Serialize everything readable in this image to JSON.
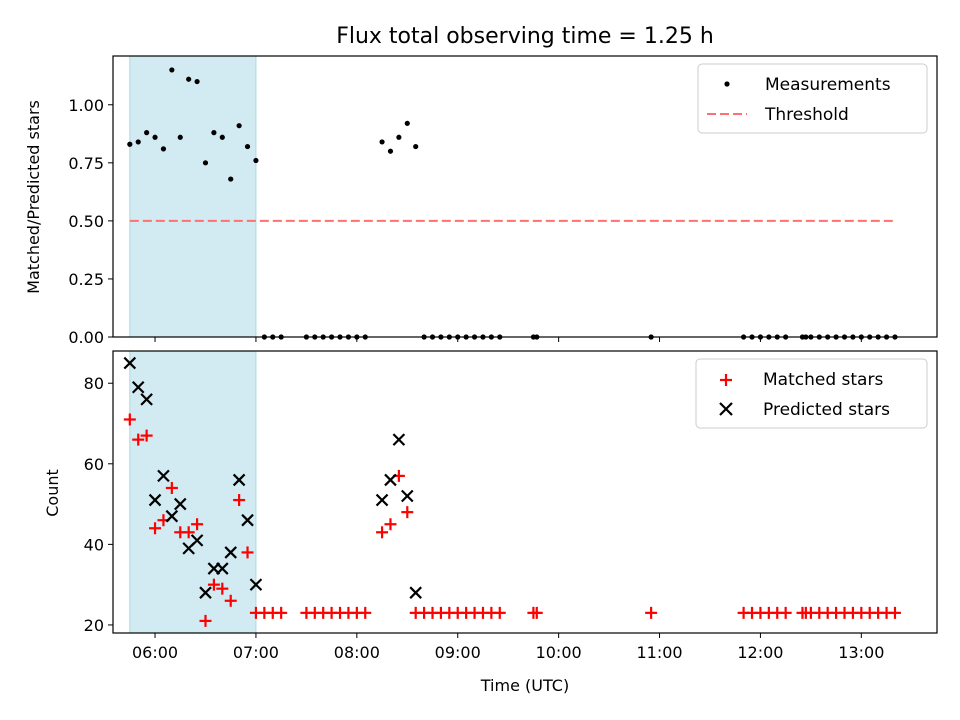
{
  "title": "Flux total observing time = 1.25 h",
  "chart_data": [
    {
      "type": "scatter",
      "panel": "top",
      "title": "Flux total observing time = 1.25 h",
      "xlabel": "",
      "ylabel": "Matched/Predicted stars",
      "xlim": [
        "05:35",
        "13:45"
      ],
      "ylim": [
        0,
        1.21
      ],
      "yticks": [
        "0.00",
        "0.25",
        "0.50",
        "0.75",
        "1.00"
      ],
      "ytick_values": [
        0,
        0.25,
        0.5,
        0.75,
        1.0
      ],
      "shaded_span": [
        "05:45",
        "07:00"
      ],
      "grid": false,
      "legend_position": "upper right",
      "series": [
        {
          "name": "Measurements",
          "marker": "dot",
          "color": "#000000",
          "points": [
            [
              "05:45",
              0.83
            ],
            [
              "05:50",
              0.84
            ],
            [
              "05:55",
              0.88
            ],
            [
              "06:00",
              0.86
            ],
            [
              "06:05",
              0.81
            ],
            [
              "06:10",
              1.15
            ],
            [
              "06:15",
              0.86
            ],
            [
              "06:20",
              1.11
            ],
            [
              "06:25",
              1.1
            ],
            [
              "06:30",
              0.75
            ],
            [
              "06:35",
              0.88
            ],
            [
              "06:40",
              0.86
            ],
            [
              "06:45",
              0.68
            ],
            [
              "06:50",
              0.91
            ],
            [
              "06:55",
              0.82
            ],
            [
              "07:00",
              0.76
            ],
            [
              "08:15",
              0.84
            ],
            [
              "08:20",
              0.8
            ],
            [
              "08:25",
              0.86
            ],
            [
              "08:30",
              0.92
            ],
            [
              "08:35",
              0.82
            ],
            [
              "07:05",
              0
            ],
            [
              "07:10",
              0
            ],
            [
              "07:15",
              0
            ],
            [
              "07:30",
              0
            ],
            [
              "07:35",
              0
            ],
            [
              "07:40",
              0
            ],
            [
              "07:45",
              0
            ],
            [
              "07:50",
              0
            ],
            [
              "07:55",
              0
            ],
            [
              "08:00",
              0
            ],
            [
              "08:05",
              0
            ],
            [
              "08:40",
              0
            ],
            [
              "08:45",
              0
            ],
            [
              "08:50",
              0
            ],
            [
              "08:55",
              0
            ],
            [
              "09:00",
              0
            ],
            [
              "09:05",
              0
            ],
            [
              "09:10",
              0
            ],
            [
              "09:15",
              0
            ],
            [
              "09:20",
              0
            ],
            [
              "09:25",
              0
            ],
            [
              "09:45",
              0
            ],
            [
              "09:47",
              0
            ],
            [
              "10:55",
              0
            ],
            [
              "11:50",
              0
            ],
            [
              "11:55",
              0
            ],
            [
              "12:00",
              0
            ],
            [
              "12:05",
              0
            ],
            [
              "12:10",
              0
            ],
            [
              "12:15",
              0
            ],
            [
              "12:25",
              0
            ],
            [
              "12:27",
              0
            ],
            [
              "12:30",
              0
            ],
            [
              "12:35",
              0
            ],
            [
              "12:40",
              0
            ],
            [
              "12:45",
              0
            ],
            [
              "12:50",
              0
            ],
            [
              "12:55",
              0
            ],
            [
              "13:00",
              0
            ],
            [
              "13:05",
              0
            ],
            [
              "13:10",
              0
            ],
            [
              "13:15",
              0
            ],
            [
              "13:20",
              0
            ]
          ]
        },
        {
          "name": "Threshold",
          "style": "dashed",
          "color": "#ff7070",
          "points": [
            [
              "05:45",
              0.5
            ],
            [
              "13:20",
              0.5
            ]
          ]
        }
      ]
    },
    {
      "type": "scatter",
      "panel": "bottom",
      "xlabel": "Time (UTC)",
      "ylabel": "Count",
      "xlim": [
        "05:35",
        "13:45"
      ],
      "ylim": [
        18,
        88
      ],
      "xticks": [
        "06:00",
        "07:00",
        "08:00",
        "09:00",
        "10:00",
        "11:00",
        "12:00",
        "13:00"
      ],
      "yticks": [
        "20",
        "40",
        "60",
        "80"
      ],
      "ytick_values": [
        20,
        40,
        60,
        80
      ],
      "shaded_span": [
        "05:45",
        "07:00"
      ],
      "grid": false,
      "legend_position": "upper right",
      "series": [
        {
          "name": "Matched stars",
          "marker": "plus",
          "color": "#ff0000",
          "points": [
            [
              "05:45",
              71
            ],
            [
              "05:50",
              66
            ],
            [
              "05:55",
              67
            ],
            [
              "06:00",
              44
            ],
            [
              "06:05",
              46
            ],
            [
              "06:10",
              54
            ],
            [
              "06:15",
              43
            ],
            [
              "06:20",
              43
            ],
            [
              "06:25",
              45
            ],
            [
              "06:30",
              21
            ],
            [
              "06:35",
              30
            ],
            [
              "06:40",
              29
            ],
            [
              "06:45",
              26
            ],
            [
              "06:50",
              51
            ],
            [
              "06:55",
              38
            ],
            [
              "07:00",
              23
            ],
            [
              "08:15",
              43
            ],
            [
              "08:20",
              45
            ],
            [
              "08:25",
              57
            ],
            [
              "08:30",
              48
            ],
            [
              "07:05",
              23
            ],
            [
              "07:10",
              23
            ],
            [
              "07:15",
              23
            ],
            [
              "07:30",
              23
            ],
            [
              "07:35",
              23
            ],
            [
              "07:40",
              23
            ],
            [
              "07:45",
              23
            ],
            [
              "07:50",
              23
            ],
            [
              "07:55",
              23
            ],
            [
              "08:00",
              23
            ],
            [
              "08:05",
              23
            ],
            [
              "08:35",
              23
            ],
            [
              "08:40",
              23
            ],
            [
              "08:45",
              23
            ],
            [
              "08:50",
              23
            ],
            [
              "08:55",
              23
            ],
            [
              "09:00",
              23
            ],
            [
              "09:05",
              23
            ],
            [
              "09:10",
              23
            ],
            [
              "09:15",
              23
            ],
            [
              "09:20",
              23
            ],
            [
              "09:25",
              23
            ],
            [
              "09:45",
              23
            ],
            [
              "09:47",
              23
            ],
            [
              "10:55",
              23
            ],
            [
              "11:50",
              23
            ],
            [
              "11:55",
              23
            ],
            [
              "12:00",
              23
            ],
            [
              "12:05",
              23
            ],
            [
              "12:10",
              23
            ],
            [
              "12:15",
              23
            ],
            [
              "12:25",
              23
            ],
            [
              "12:27",
              23
            ],
            [
              "12:30",
              23
            ],
            [
              "12:35",
              23
            ],
            [
              "12:40",
              23
            ],
            [
              "12:45",
              23
            ],
            [
              "12:50",
              23
            ],
            [
              "12:55",
              23
            ],
            [
              "13:00",
              23
            ],
            [
              "13:05",
              23
            ],
            [
              "13:10",
              23
            ],
            [
              "13:15",
              23
            ],
            [
              "13:20",
              23
            ]
          ]
        },
        {
          "name": "Predicted stars",
          "marker": "x",
          "color": "#000000",
          "points": [
            [
              "05:45",
              85
            ],
            [
              "05:50",
              79
            ],
            [
              "05:55",
              76
            ],
            [
              "06:00",
              51
            ],
            [
              "06:05",
              57
            ],
            [
              "06:10",
              47
            ],
            [
              "06:15",
              50
            ],
            [
              "06:20",
              39
            ],
            [
              "06:25",
              41
            ],
            [
              "06:30",
              28
            ],
            [
              "06:35",
              34
            ],
            [
              "06:40",
              34
            ],
            [
              "06:45",
              38
            ],
            [
              "06:50",
              56
            ],
            [
              "06:55",
              46
            ],
            [
              "07:00",
              30
            ],
            [
              "08:15",
              51
            ],
            [
              "08:20",
              56
            ],
            [
              "08:25",
              66
            ],
            [
              "08:30",
              52
            ],
            [
              "08:35",
              28
            ]
          ]
        }
      ]
    }
  ],
  "legend_top": [
    "Measurements",
    "Threshold"
  ],
  "legend_bottom": [
    "Matched stars",
    "Predicted stars"
  ]
}
